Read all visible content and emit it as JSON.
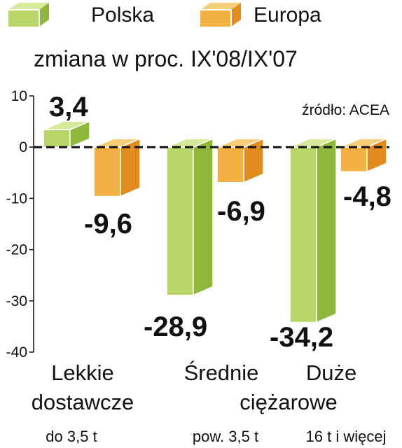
{
  "legend": {
    "polska": "Polska",
    "europa": "Europa"
  },
  "subtitle": "zmiana w proc. IX'08/IX'07",
  "source": "źródło: ACEA",
  "colors": {
    "polska_front": "#b8d66a",
    "polska_side": "#8fb83b",
    "polska_top": "#d6ea9c",
    "europa_front": "#f4b042",
    "europa_side": "#e28c1f",
    "europa_top": "#f8cd7a"
  },
  "categories": {
    "lekkie": {
      "line1": "Lekkie",
      "line2": "dostawcze",
      "sub": "do 3,5 t"
    },
    "srednie": {
      "line1": "Średnie",
      "sub": "pow. 3,5 t"
    },
    "duze": {
      "line1": "Duże",
      "sub": "16 t i więcej"
    },
    "shared": "ciężarowe"
  },
  "chart_data": {
    "type": "bar",
    "categories": [
      "Lekkie dostawcze do 3,5 t",
      "Średnie ciężarowe pow. 3,5 t",
      "Duże ciężarowe 16 t i więcej"
    ],
    "series": [
      {
        "name": "Polska",
        "values": [
          3.4,
          -28.9,
          -34.2
        ],
        "labels": [
          "3,4",
          "-28,9",
          "-34,2"
        ]
      },
      {
        "name": "Europa",
        "values": [
          -9.6,
          -6.9,
          -4.8
        ],
        "labels": [
          "-9,6",
          "-6,9",
          "-4,8"
        ]
      }
    ],
    "ylim": [
      -40,
      10
    ],
    "yticks": [
      10,
      0,
      -10,
      -20,
      -30,
      -40
    ],
    "ytick_labels": [
      "10",
      "0",
      "-10",
      "-20",
      "-30",
      "-40"
    ],
    "title": "",
    "subtitle": "zmiana w proc. IX'08/IX'07",
    "legend_position": "top",
    "zero_line": "dashed",
    "grid": false
  }
}
